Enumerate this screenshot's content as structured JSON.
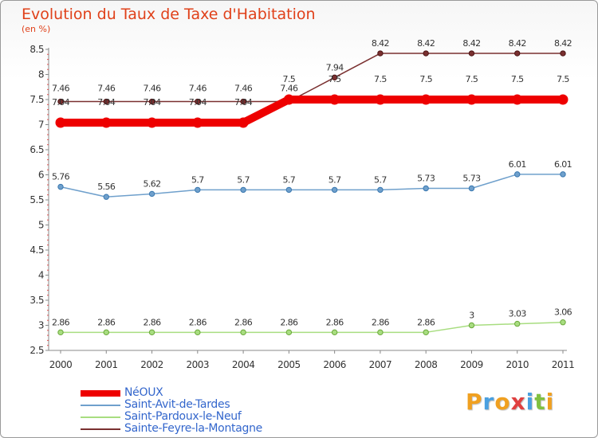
{
  "title": "Evolution du Taux de Taxe d'Habitation",
  "subtitle": "(en %)",
  "logo": {
    "letters": [
      "P",
      "r",
      "o",
      "x",
      "i",
      "t",
      "i"
    ],
    "colors": [
      "#f0a020",
      "#4aa0e0",
      "#f0a020",
      "#e04040",
      "#4aa0e0",
      "#80c040",
      "#f0a020"
    ]
  },
  "chart_data": {
    "type": "line",
    "x": [
      "2000",
      "2001",
      "2002",
      "2003",
      "2004",
      "2005",
      "2006",
      "2007",
      "2008",
      "2009",
      "2010",
      "2011"
    ],
    "ylim": [
      2.5,
      8.5
    ],
    "yticks": [
      2.5,
      3,
      3.5,
      4,
      4.5,
      5,
      5.5,
      6,
      6.5,
      7,
      7.5,
      8,
      8.5
    ],
    "series": [
      {
        "name": "NéOUX",
        "color": "#ee0000",
        "values": [
          7.04,
          7.04,
          7.04,
          7.04,
          7.04,
          7.5,
          7.5,
          7.5,
          7.5,
          7.5,
          7.5,
          7.5
        ],
        "labels": [
          "7.04",
          "7.04",
          "7.04",
          "7.04",
          "7.04",
          "7.5",
          "7.5",
          "7.5",
          "7.5",
          "7.5",
          "7.5",
          "7.5"
        ]
      },
      {
        "name": "Saint-Avit-de-Tardes",
        "color": "#6fa0cc",
        "values": [
          5.76,
          5.56,
          5.62,
          5.7,
          5.7,
          5.7,
          5.7,
          5.7,
          5.73,
          5.73,
          6.01,
          6.01
        ],
        "labels": [
          "5.76",
          "5.56",
          "5.62",
          "5.7",
          "5.7",
          "5.7",
          "5.7",
          "5.7",
          "5.73",
          "5.73",
          "6.01",
          "6.01"
        ]
      },
      {
        "name": "Saint-Pardoux-le-Neuf",
        "color": "#a8dd80",
        "values": [
          2.86,
          2.86,
          2.86,
          2.86,
          2.86,
          2.86,
          2.86,
          2.86,
          2.86,
          3,
          3.03,
          3.06
        ],
        "labels": [
          "2.86",
          "2.86",
          "2.86",
          "2.86",
          "2.86",
          "2.86",
          "2.86",
          "2.86",
          "2.86",
          "3",
          "3.03",
          "3.06"
        ]
      },
      {
        "name": "Sainte-Feyre-la-Montagne",
        "color": "#7a3030",
        "values": [
          7.46,
          7.46,
          7.46,
          7.46,
          7.46,
          7.46,
          7.94,
          8.42,
          8.42,
          8.42,
          8.42,
          8.42
        ],
        "labels": [
          "7.46",
          "7.46",
          "7.46",
          "7.46",
          "7.46",
          "7.46",
          "7.94",
          "8.42",
          "8.42",
          "8.42",
          "8.42",
          "8.42"
        ]
      }
    ],
    "grid": false,
    "legend_position": "bottom-left"
  }
}
